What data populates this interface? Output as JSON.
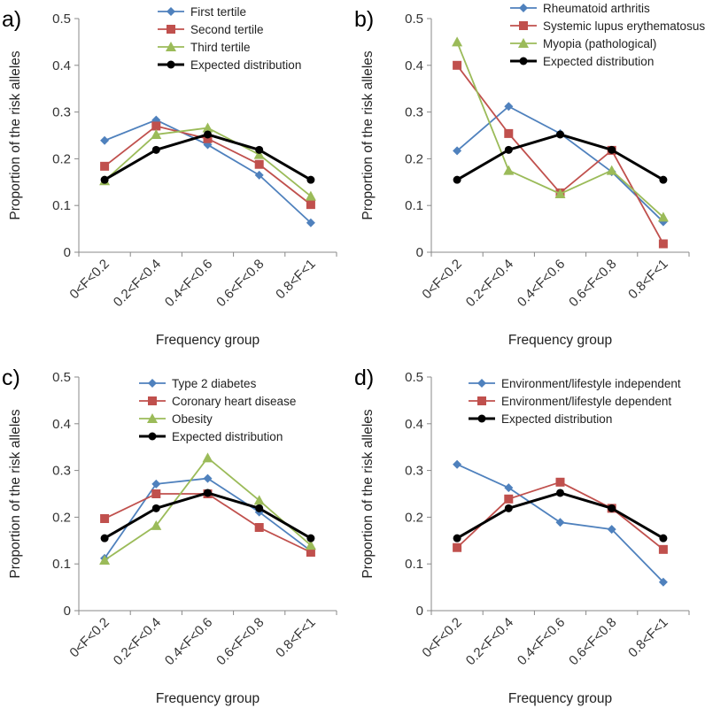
{
  "chart_data": [
    {
      "panel": "a)",
      "type": "line",
      "categories": [
        "0<F<0.2",
        "0.2<F<0.4",
        "0.4<F<0.6",
        "0.6<F<0.8",
        "0.8<F<1"
      ],
      "xlabel": "Frequency group",
      "ylabel": "Proportion of the risk alleles",
      "ylim": [
        0,
        0.5
      ],
      "yticks": [
        "0",
        "0.1",
        "0.2",
        "0.3",
        "0.4",
        "0.5"
      ],
      "grid": false,
      "legend_position": "top-center",
      "series": [
        {
          "name": "First tertile",
          "values": [
            0.239,
            0.283,
            0.23,
            0.165,
            0.063
          ],
          "color": "#4F81BD",
          "marker": "diamond"
        },
        {
          "name": "Second tertile",
          "values": [
            0.184,
            0.27,
            0.243,
            0.188,
            0.102
          ],
          "color": "#C0504D",
          "marker": "square"
        },
        {
          "name": "Third tertile",
          "values": [
            0.153,
            0.252,
            0.266,
            0.209,
            0.12
          ],
          "color": "#9BBB59",
          "marker": "triangle"
        },
        {
          "name": "Expected distribution",
          "values": [
            0.155,
            0.219,
            0.252,
            0.219,
            0.155
          ],
          "color": "#000000",
          "marker": "circle"
        }
      ]
    },
    {
      "panel": "b)",
      "type": "line",
      "categories": [
        "0<F<0.2",
        "0.2<F<0.4",
        "0.4<F<0.6",
        "0.6<F<0.8",
        "0.8<F<1"
      ],
      "xlabel": "Frequency group",
      "ylabel": "Proportion of the risk alleles",
      "ylim": [
        0,
        0.5
      ],
      "yticks": [
        "0",
        "0.1",
        "0.2",
        "0.3",
        "0.4",
        "0.5"
      ],
      "grid": false,
      "legend_position": "top-center",
      "series": [
        {
          "name": "Rheumatoid arthritis",
          "values": [
            0.217,
            0.312,
            0.254,
            0.172,
            0.065
          ],
          "color": "#4F81BD",
          "marker": "diamond"
        },
        {
          "name": "Systemic lupus erythematosus",
          "values": [
            0.4,
            0.254,
            0.127,
            0.218,
            0.018
          ],
          "color": "#C0504D",
          "marker": "square"
        },
        {
          "name": "Myopia (pathological)",
          "values": [
            0.45,
            0.175,
            0.125,
            0.175,
            0.075
          ],
          "color": "#9BBB59",
          "marker": "triangle"
        },
        {
          "name": "Expected distribution",
          "values": [
            0.155,
            0.219,
            0.252,
            0.219,
            0.155
          ],
          "color": "#000000",
          "marker": "circle"
        }
      ]
    },
    {
      "panel": "c)",
      "type": "line",
      "categories": [
        "0<F<0.2",
        "0.2<F<0.4",
        "0.4<F<0.6",
        "0.6<F<0.8",
        "0.8<F<1"
      ],
      "xlabel": "Frequency group",
      "ylabel": "Proportion of the risk alleles",
      "ylim": [
        0,
        0.5
      ],
      "yticks": [
        "0",
        "0.1",
        "0.2",
        "0.3",
        "0.4",
        "0.5"
      ],
      "grid": false,
      "legend_position": "top-center",
      "series": [
        {
          "name": "Type 2 diabetes",
          "values": [
            0.112,
            0.271,
            0.283,
            0.211,
            0.128
          ],
          "color": "#4F81BD",
          "marker": "diamond"
        },
        {
          "name": "Coronary heart disease",
          "values": [
            0.197,
            0.25,
            0.25,
            0.178,
            0.125
          ],
          "color": "#C0504D",
          "marker": "square"
        },
        {
          "name": "Obesity",
          "values": [
            0.108,
            0.182,
            0.327,
            0.236,
            0.14
          ],
          "color": "#9BBB59",
          "marker": "triangle"
        },
        {
          "name": "Expected distribution",
          "values": [
            0.155,
            0.219,
            0.252,
            0.219,
            0.155
          ],
          "color": "#000000",
          "marker": "circle"
        }
      ]
    },
    {
      "panel": "d)",
      "type": "line",
      "categories": [
        "0<F<0.2",
        "0.2<F<0.4",
        "0.4<F<0.6",
        "0.6<F<0.8",
        "0.8<F<1"
      ],
      "xlabel": "Frequency group",
      "ylabel": "Proportion of the risk alleles",
      "ylim": [
        0,
        0.5
      ],
      "yticks": [
        "0",
        "0.1",
        "0.2",
        "0.3",
        "0.4",
        "0.5"
      ],
      "grid": false,
      "legend_position": "top-center",
      "series": [
        {
          "name": "Environment/lifestyle independent",
          "values": [
            0.313,
            0.263,
            0.189,
            0.174,
            0.061
          ],
          "color": "#4F81BD",
          "marker": "diamond"
        },
        {
          "name": "Environment/lifestyle dependent",
          "values": [
            0.135,
            0.239,
            0.275,
            0.219,
            0.131
          ],
          "color": "#C0504D",
          "marker": "square"
        },
        {
          "name": "Expected distribution",
          "values": [
            0.155,
            0.219,
            0.252,
            0.219,
            0.155
          ],
          "color": "#000000",
          "marker": "circle"
        }
      ]
    }
  ]
}
